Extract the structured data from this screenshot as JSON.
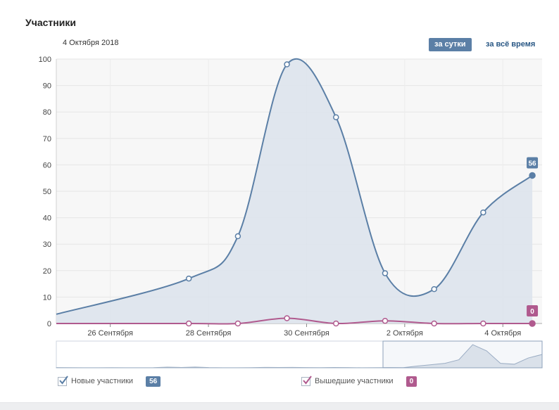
{
  "header": {
    "title": "Участники",
    "date": "4 Октября 2018",
    "tab_day": "за сутки",
    "tab_all": "за всё время"
  },
  "colors": {
    "new": "#5b7fa6",
    "left": "#b05a8e",
    "fill": "#dde3ec"
  },
  "legend": {
    "new_label": "Новые участники",
    "new_badge": "56",
    "left_label": "Вышедшие участники",
    "left_badge": "0"
  },
  "chart_data": {
    "type": "line",
    "title": "Участники",
    "x_labels": [
      "26 Сентября",
      "28 Сентября",
      "30 Сентября",
      "2 Октября",
      "4 Октября"
    ],
    "y_ticks": [
      0,
      10,
      20,
      30,
      40,
      50,
      60,
      70,
      80,
      90,
      100
    ],
    "ylim": [
      0,
      100
    ],
    "x_range": [
      0,
      9.9
    ],
    "x_label_positions": [
      1.1,
      3.1,
      5.1,
      7.1,
      9.1
    ],
    "series": [
      {
        "name": "Новые участники",
        "x": [
          0,
          2.7,
          3.7,
          4.7,
          5.7,
          6.7,
          7.7,
          8.7,
          9.7
        ],
        "values": [
          3.5,
          17,
          33,
          98,
          78,
          19,
          13,
          42,
          56
        ],
        "marked": [
          false,
          true,
          true,
          true,
          true,
          true,
          true,
          true,
          true
        ],
        "last_label": "56"
      },
      {
        "name": "Вышедшие участники",
        "x": [
          0,
          2.7,
          3.7,
          4.7,
          5.7,
          6.7,
          7.7,
          8.7,
          9.7
        ],
        "values": [
          0,
          0,
          0,
          2,
          0,
          1,
          0,
          0,
          0
        ],
        "marked": [
          false,
          true,
          true,
          true,
          true,
          true,
          true,
          true,
          true
        ],
        "last_label": "0"
      }
    ],
    "overview_values": [
      0.3,
      0.2,
      0.1,
      0.1,
      0.2,
      0.1,
      0.1,
      0.2,
      0.8,
      0.4,
      0.9,
      0.3,
      0.1,
      0.1,
      0.2,
      0.5,
      0.4,
      0.5,
      0.3,
      0.2,
      0.4,
      0.3,
      0.1,
      0.2,
      0.3,
      0.2,
      2,
      3.5,
      5,
      9,
      26,
      19,
      5,
      4,
      11,
      15
    ]
  }
}
